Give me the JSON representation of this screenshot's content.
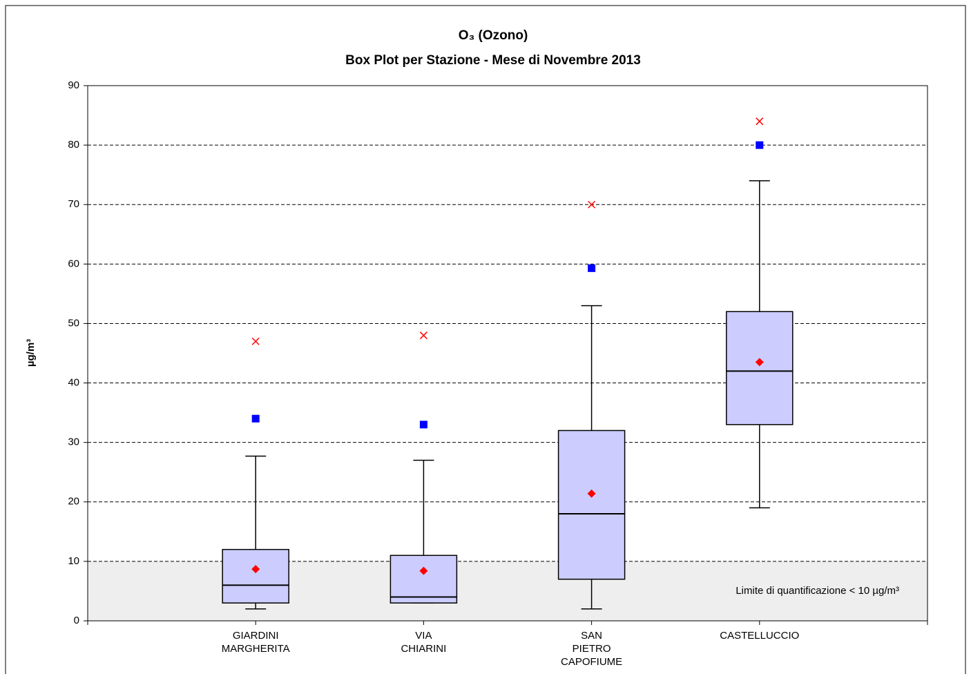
{
  "chart_data": {
    "type": "box",
    "title": [
      "O₃ (Ozono)",
      "Box Plot per Stazione - Mese di Novembre 2013"
    ],
    "y_label": "µg/m³",
    "annotation": "Limite di quantificazione < 10 µg/m³",
    "shaded_band": [
      0,
      10
    ],
    "categories": [
      "GIARDINI MARGHERITA",
      "VIA CHIARINI",
      "SAN PIETRO CAPOFIUME",
      "CASTELLUCCIO"
    ],
    "min": [
      2,
      3,
      2,
      19
    ],
    "q1": [
      3,
      3,
      7,
      33
    ],
    "median": [
      6,
      4,
      18,
      42
    ],
    "q3": [
      12,
      11,
      32,
      52
    ],
    "max": [
      27.7,
      27,
      53,
      74
    ],
    "mean": [
      8.7,
      8.4,
      21.4,
      43.5
    ],
    "square": [
      34,
      33,
      59.3,
      80
    ],
    "cross": [
      47,
      48,
      70,
      84
    ],
    "box_color": "#ccccff",
    "ylim": [
      0,
      90
    ],
    "yticks": [
      0,
      10,
      20,
      30,
      40,
      50,
      60,
      70,
      80,
      90
    ],
    "grid": true
  }
}
